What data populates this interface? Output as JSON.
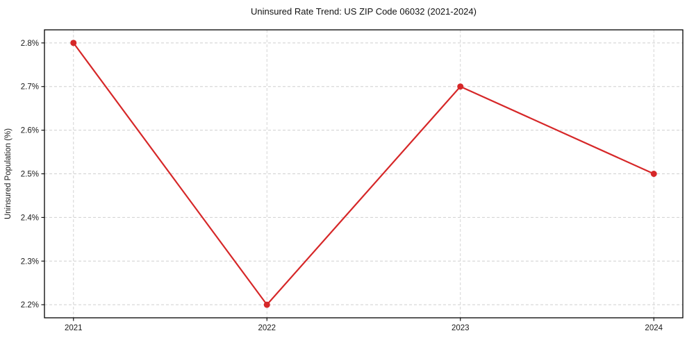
{
  "chart_data": {
    "type": "line",
    "title": "Uninsured Rate Trend: US ZIP Code 06032 (2021-2024)",
    "xlabel": "",
    "ylabel": "Uninsured Population (%)",
    "x": [
      2021,
      2022,
      2023,
      2024
    ],
    "x_tick_labels": [
      "2021",
      "2022",
      "2023",
      "2024"
    ],
    "series": [
      {
        "name": "Uninsured Population (%)",
        "values": [
          2.8,
          2.2,
          2.7,
          2.5
        ]
      }
    ],
    "y_ticks": [
      2.2,
      2.3,
      2.4,
      2.5,
      2.6,
      2.7,
      2.8
    ],
    "y_tick_labels": [
      "2.2%",
      "2.3%",
      "2.4%",
      "2.5%",
      "2.6%",
      "2.7%",
      "2.8%"
    ],
    "xlim": [
      2020.85,
      2024.15
    ],
    "ylim": [
      2.17,
      2.83
    ],
    "grid": true,
    "grid_style": "dashed",
    "legend": "none",
    "line_color": "#d62728",
    "grid_color": "#cfcfcf",
    "spine_color": "#000000",
    "marker": "circle"
  }
}
